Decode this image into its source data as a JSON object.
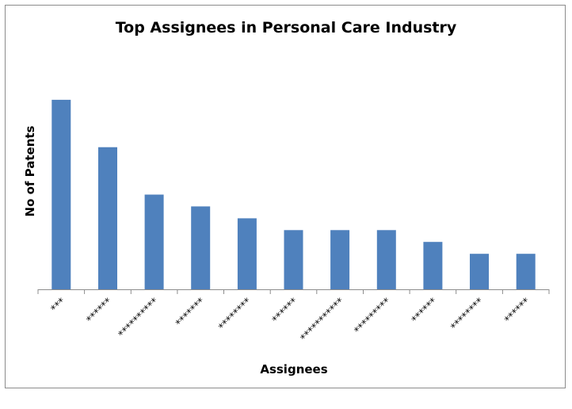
{
  "chart_data": {
    "type": "bar",
    "title": "Top Assignees in Personal Care Industry",
    "xlabel": "Assignees",
    "ylabel": "No of Patents",
    "categories": [
      "***",
      "******",
      "**********",
      "*******",
      "********",
      "******",
      "***********",
      "*********",
      "******",
      "********",
      "******"
    ],
    "values": [
      16,
      12,
      8,
      7,
      6,
      5,
      5,
      5,
      4,
      3,
      3
    ],
    "ylim": [
      0,
      17
    ],
    "grid": false,
    "legend": "none",
    "bar_color": "#4f81bd",
    "axis_color": "#8c8c8c"
  }
}
